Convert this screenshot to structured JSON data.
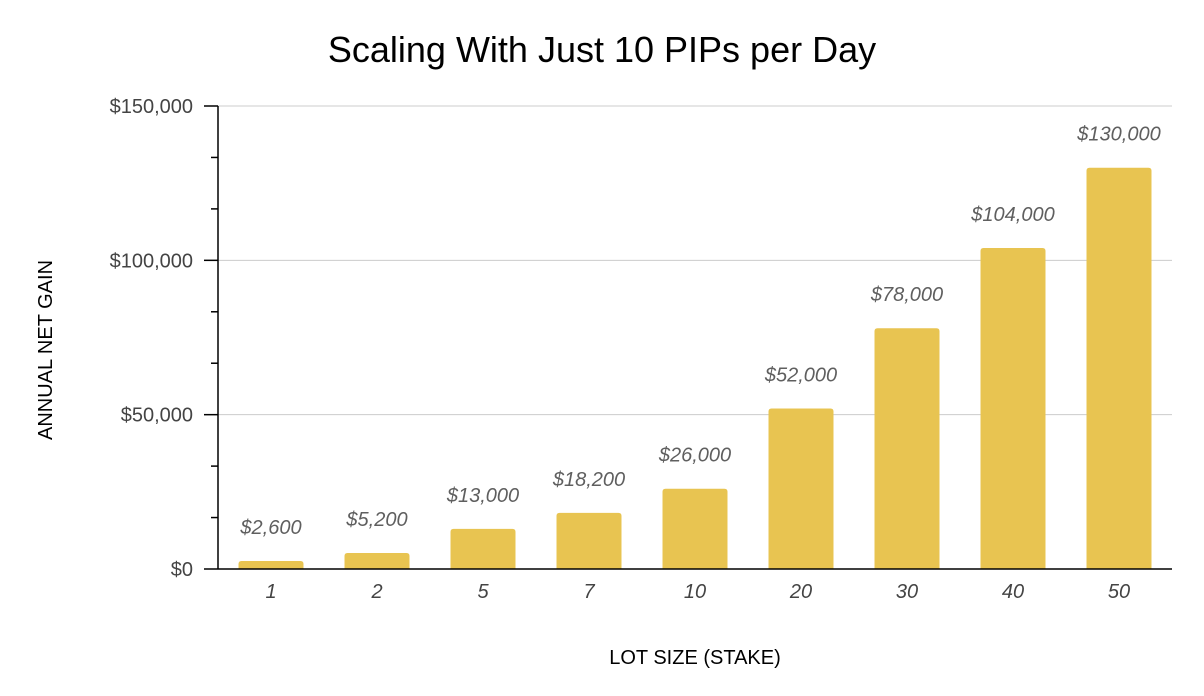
{
  "chart_data": {
    "type": "bar",
    "title": "Scaling With Just 10 PIPs per Day",
    "xlabel": "LOT SIZE (STAKE)",
    "ylabel": "ANNUAL NET GAIN",
    "categories": [
      "1",
      "2",
      "5",
      "7",
      "10",
      "20",
      "30",
      "40",
      "50"
    ],
    "values": [
      2600,
      5200,
      13000,
      18200,
      26000,
      52000,
      78000,
      104000,
      130000
    ],
    "data_labels": [
      "$2,600",
      "$5,200",
      "$13,000",
      "$18,200",
      "$26,000",
      "$52,000",
      "$78,000",
      "$104,000",
      "$130,000"
    ],
    "ylim": [
      0,
      150000
    ],
    "yticks": [
      0,
      50000,
      100000,
      150000
    ],
    "ytick_labels": [
      "$0",
      "$50,000",
      "$100,000",
      "$150,000"
    ],
    "grid": true,
    "legend": "none",
    "colors": {
      "bar": "#E8C451",
      "grid": "#cccccc",
      "axis": "#000000"
    }
  }
}
